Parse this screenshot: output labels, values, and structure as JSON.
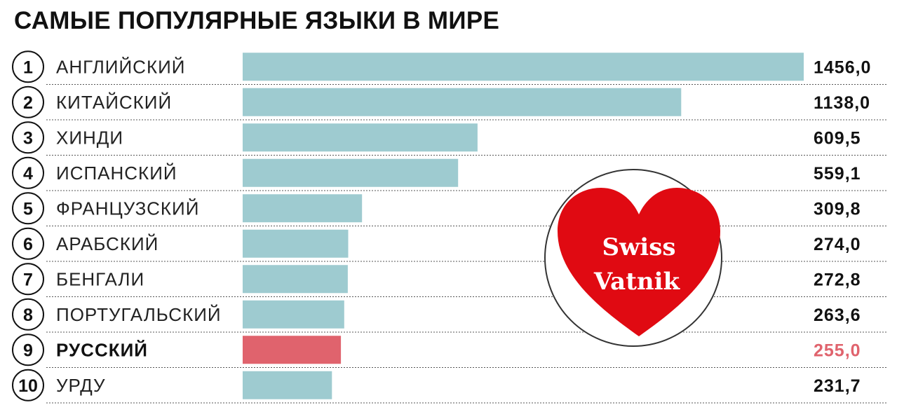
{
  "chart_data": {
    "type": "bar",
    "orientation": "horizontal",
    "title": "САМЫЕ ПОПУЛЯРНЫЕ ЯЗЫКИ В МИРЕ",
    "ranks": [
      "1",
      "2",
      "3",
      "4",
      "5",
      "6",
      "7",
      "8",
      "9",
      "10"
    ],
    "categories": [
      "АНГЛИЙСКИЙ",
      "КИТАЙСКИЙ",
      "ХИНДИ",
      "ИСПАНСКИЙ",
      "ФРАНЦУЗСКИЙ",
      "АРАБСКИЙ",
      "БЕНГАЛИ",
      "ПОРТУГАЛЬСКИЙ",
      "РУССКИЙ",
      "УРДУ"
    ],
    "values": [
      1456.0,
      1138.0,
      609.5,
      559.1,
      309.8,
      274.0,
      272.8,
      263.6,
      255.0,
      231.7
    ],
    "value_labels": [
      "1456,0",
      "1138,0",
      "609,5",
      "559,1",
      "309,8",
      "274,0",
      "272,8",
      "263,6",
      "255,0",
      "231,7"
    ],
    "highlight_index": 8,
    "xlim": [
      0,
      1456
    ],
    "grid": false,
    "legend": "none",
    "colors": {
      "bar": "#9ecbd0",
      "highlight_bar": "#e0636d",
      "highlight_value": "#e0636d",
      "separator": "#555555"
    }
  },
  "watermark": {
    "line1": "Swiss",
    "line2": "Vatnik",
    "icon": "heart-icon",
    "heart_color": "#e00a12",
    "circle_color": "#333333"
  }
}
